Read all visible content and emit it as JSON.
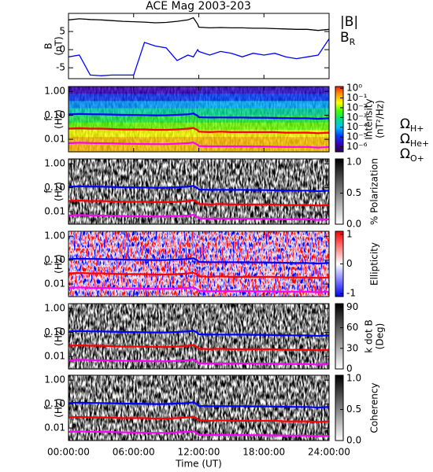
{
  "chart_data": [
    {
      "type": "line",
      "title": "ACE Mag 2003-203",
      "ylabel": [
        "B",
        "(nT)"
      ],
      "x": [
        0,
        1,
        2,
        3,
        4,
        5,
        6,
        7,
        8,
        9,
        10,
        11,
        11.5,
        11.9,
        12,
        13,
        14,
        15,
        16,
        17,
        18,
        19,
        20,
        21,
        22,
        23,
        24
      ],
      "xlim": [
        0,
        24
      ],
      "ylim": [
        -8,
        10
      ],
      "yticks": [
        5,
        0,
        -5
      ],
      "series": [
        {
          "name": "|B|",
          "color": "#000000",
          "values": [
            8.2,
            8.5,
            8.3,
            8.2,
            8.0,
            7.8,
            7.7,
            7.6,
            7.4,
            7.5,
            7.8,
            8.2,
            8.8,
            7.0,
            6.2,
            6.0,
            6.1,
            6.0,
            6.0,
            5.9,
            5.9,
            5.8,
            5.7,
            5.6,
            5.6,
            5.3,
            5.6
          ]
        },
        {
          "name": "BR",
          "color": "#0000ff",
          "values": [
            -2,
            -1.5,
            -7,
            -7.2,
            -7,
            -7,
            -7,
            2,
            1,
            0.5,
            -3,
            -1.5,
            -2,
            0,
            -0.5,
            -1.5,
            -0.5,
            -1,
            -2,
            -1,
            -1.5,
            -1,
            -2,
            -2.5,
            -2,
            -1.5,
            3
          ]
        }
      ]
    },
    {
      "type": "spectrogram",
      "ylabel": [
        "f",
        "(Hz)"
      ],
      "ylim": [
        0.003,
        1.6
      ],
      "log": true,
      "yticks": [
        {
          "value": 1,
          "label": "1.00"
        },
        {
          "value": 0.1,
          "label": "0.10"
        },
        {
          "value": 0.01,
          "label": "0.01"
        }
      ],
      "colorbar_label": [
        "Intensity",
        "(nT²/Hz)"
      ],
      "zlim": [
        3e-07,
        1.5
      ],
      "zlog": true,
      "zticks": [
        {
          "value": 1,
          "label": "10⁰"
        },
        {
          "value": 0.1,
          "label": "10⁻¹"
        },
        {
          "value": 0.01,
          "label": "10⁻²"
        },
        {
          "value": 0.001,
          "label": "10⁻³"
        },
        {
          "value": 0.0001,
          "label": "10⁻⁴"
        },
        {
          "value": 1e-05,
          "label": "10⁻⁵"
        },
        {
          "value": 1e-06,
          "label": "10⁻⁶"
        }
      ],
      "colormap": [
        "#2a0050",
        "#3a00c0",
        "#0040ff",
        "#00c0ff",
        "#00e080",
        "#40ff00",
        "#ffff00",
        "#ffa000",
        "#ff2000"
      ],
      "t_edges": [
        0,
        6,
        12,
        18,
        24
      ],
      "f_edges": [
        1.6,
        0.8,
        0.4,
        0.2,
        0.1,
        0.05,
        0.025,
        0.0125,
        0.003
      ],
      "z": [
        [
          2e-06,
          2e-06,
          3e-06,
          3e-06
        ],
        [
          1e-05,
          1e-05,
          1.5e-05,
          1.2e-05
        ],
        [
          5e-05,
          6e-05,
          8e-05,
          7e-05
        ],
        [
          0.0003,
          0.0004,
          0.0005,
          0.0004
        ],
        [
          0.0015,
          0.002,
          0.002,
          0.0018
        ],
        [
          0.006,
          0.008,
          0.008,
          0.007
        ],
        [
          0.03,
          0.03,
          0.035,
          0.03
        ],
        [
          0.12,
          0.1,
          0.12,
          0.1
        ]
      ],
      "series": [
        {
          "name": "ΩH+",
          "color": "#0000ff",
          "values": [
            0.111,
            0.115,
            0.112,
            0.111,
            0.108,
            0.105,
            0.104,
            0.103,
            0.1,
            0.101,
            0.105,
            0.111,
            0.119,
            0.095,
            0.084,
            0.081,
            0.082,
            0.081,
            0.081,
            0.08,
            0.08,
            0.078,
            0.077,
            0.076,
            0.076,
            0.072,
            0.076
          ]
        },
        {
          "name": "ΩHe+",
          "color": "#ff0000",
          "values": [
            0.028,
            0.029,
            0.028,
            0.028,
            0.027,
            0.026,
            0.026,
            0.026,
            0.025,
            0.025,
            0.026,
            0.028,
            0.03,
            0.024,
            0.021,
            0.02,
            0.021,
            0.02,
            0.02,
            0.02,
            0.02,
            0.02,
            0.019,
            0.019,
            0.019,
            0.018,
            0.019
          ]
        },
        {
          "name": "ΩO+",
          "color": "#ff00ff",
          "values": [
            0.0069,
            0.0072,
            0.007,
            0.0069,
            0.0068,
            0.0066,
            0.0065,
            0.0064,
            0.0063,
            0.0063,
            0.0066,
            0.0069,
            0.0074,
            0.0059,
            0.0052,
            0.0051,
            0.0051,
            0.0051,
            0.0051,
            0.005,
            0.005,
            0.0049,
            0.0048,
            0.0048,
            0.0048,
            0.0045,
            0.0048
          ]
        }
      ]
    },
    {
      "type": "spectrogram",
      "ylabel": [
        "f",
        "(Hz)"
      ],
      "ylim": [
        0.003,
        1.6
      ],
      "log": true,
      "yticks": [
        {
          "value": 1,
          "label": "1.00"
        },
        {
          "value": 0.1,
          "label": "0.10"
        },
        {
          "value": 0.01,
          "label": "0.01"
        }
      ],
      "colorbar_label": [
        "% Polarization"
      ],
      "zlim": [
        0,
        1.05
      ],
      "zticks": [
        {
          "value": 1,
          "label": "1.0"
        },
        {
          "value": 0.5,
          "label": "0.5"
        },
        {
          "value": 0,
          "label": "0.0"
        }
      ],
      "colormap": [
        "#ffffff",
        "#000000"
      ]
    },
    {
      "type": "spectrogram",
      "ylabel": [
        "f",
        "(Hz)"
      ],
      "ylim": [
        0.003,
        1.6
      ],
      "log": true,
      "yticks": [
        {
          "value": 1,
          "label": "1.00"
        },
        {
          "value": 0.1,
          "label": "0.10"
        },
        {
          "value": 0.01,
          "label": "0.01"
        }
      ],
      "colorbar_label": [
        "Ellipticity"
      ],
      "zlim": [
        -1.1,
        1.1
      ],
      "zticks": [
        1,
        0,
        -1
      ],
      "colormap": [
        "#0000ff",
        "#ffffff",
        "#ff0000"
      ]
    },
    {
      "type": "spectrogram",
      "ylabel": [
        "f",
        "(Hz)"
      ],
      "ylim": [
        0.003,
        1.6
      ],
      "log": true,
      "yticks": [
        {
          "value": 1,
          "label": "1.00"
        },
        {
          "value": 0.1,
          "label": "0.10"
        },
        {
          "value": 0.01,
          "label": "0.01"
        }
      ],
      "colorbar_label": [
        "k dot B",
        "(Deg)"
      ],
      "zlim": [
        0,
        95
      ],
      "zticks": [
        90,
        60,
        30,
        0
      ],
      "colormap": [
        "#ffffff",
        "#000000"
      ]
    },
    {
      "type": "spectrogram",
      "ylabel": [
        "f",
        "(Hz)"
      ],
      "ylim": [
        0.003,
        1.6
      ],
      "log": true,
      "yticks": [
        {
          "value": 1,
          "label": "1.00"
        },
        {
          "value": 0.1,
          "label": "0.10"
        },
        {
          "value": 0.01,
          "label": "0.01"
        }
      ],
      "colorbar_label": [
        "Coherency"
      ],
      "zlim": [
        0,
        1.05
      ],
      "zticks": [
        {
          "value": 1,
          "label": "1.0"
        },
        {
          "value": 0.5,
          "label": "0.5"
        },
        {
          "value": 0,
          "label": "0.0"
        }
      ],
      "colormap": [
        "#ffffff",
        "#000000"
      ],
      "xticks": [
        {
          "value": 0,
          "label": "00:00:00"
        },
        {
          "value": 6,
          "label": "06:00:00"
        },
        {
          "value": 12,
          "label": "12:00:00"
        },
        {
          "value": 18,
          "label": "18:00:00"
        },
        {
          "value": 24,
          "label": "24:00:00"
        }
      ],
      "xlabel": "Time (UT)"
    }
  ]
}
